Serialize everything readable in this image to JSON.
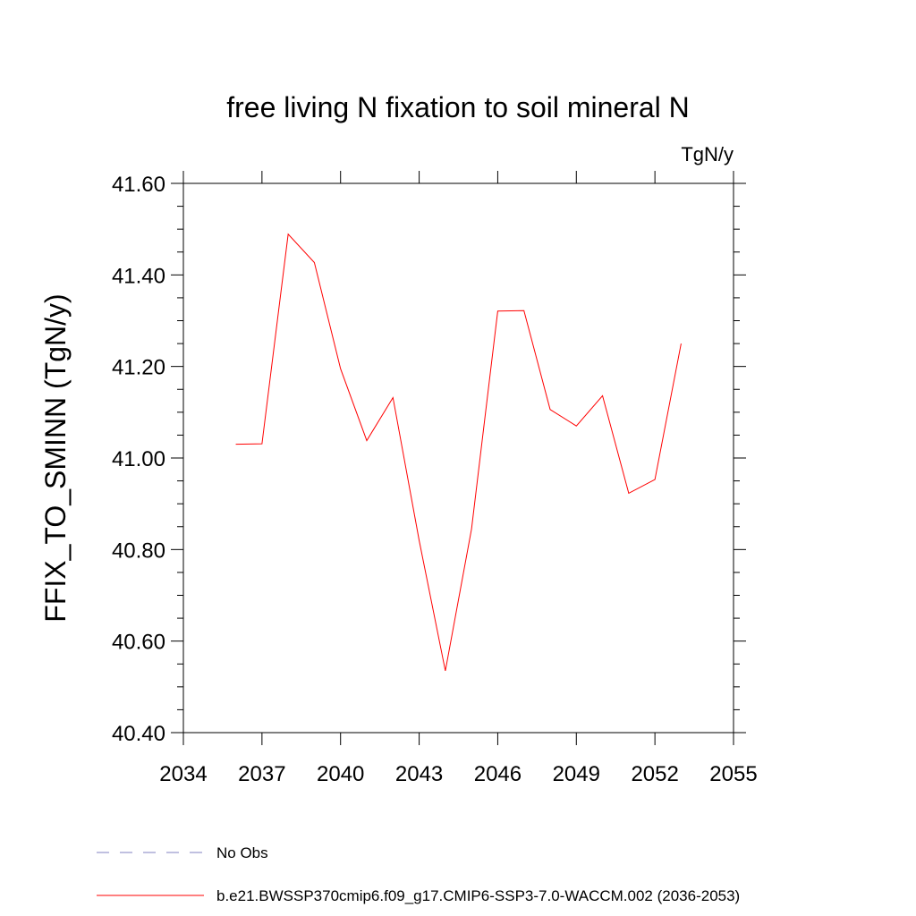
{
  "chart_data": {
    "type": "line",
    "title": "free living N fixation to soil mineral N",
    "units": "TgN/y",
    "ylabel": "FFIX_TO_SMINN  (TgN/y)",
    "xlabel": "",
    "xlim": [
      2034,
      2055
    ],
    "ylim": [
      40.4,
      41.6
    ],
    "xticks": [
      2034,
      2037,
      2040,
      2043,
      2046,
      2049,
      2052,
      2055
    ],
    "xtick_labels": [
      "2034",
      "2037",
      "2040",
      "2043",
      "2046",
      "2049",
      "2052",
      "2055"
    ],
    "yticks": [
      40.4,
      40.6,
      40.8,
      41.0,
      41.2,
      41.4,
      41.6
    ],
    "ytick_labels": [
      "40.40",
      "40.60",
      "40.80",
      "41.00",
      "41.20",
      "41.40",
      "41.60"
    ],
    "grid": false,
    "legend_placement": "bottom",
    "series": [
      {
        "name": "b.e21.BWSSP370cmip6.f09_g17.CMIP6-SSP3-7.0-WACCM.002 (2036-2053)",
        "color": "#ff0000",
        "style": "solid",
        "x": [
          2036,
          2037,
          2038,
          2039,
          2040,
          2041,
          2042,
          2043,
          2044,
          2045,
          2046,
          2047,
          2048,
          2049,
          2050,
          2051,
          2052,
          2053
        ],
        "y": [
          41.03,
          41.031,
          41.489,
          41.427,
          41.195,
          41.038,
          41.132,
          40.82,
          40.535,
          40.845,
          41.321,
          41.322,
          41.106,
          41.07,
          41.136,
          40.923,
          40.953,
          41.25
        ]
      }
    ],
    "legend": [
      {
        "label": "No Obs",
        "color": "#8080c0",
        "style": "dashed"
      },
      {
        "label": "b.e21.BWSSP370cmip6.f09_g17.CMIP6-SSP3-7.0-WACCM.002 (2036-2053)",
        "color": "#ff0000",
        "style": "solid"
      }
    ]
  }
}
